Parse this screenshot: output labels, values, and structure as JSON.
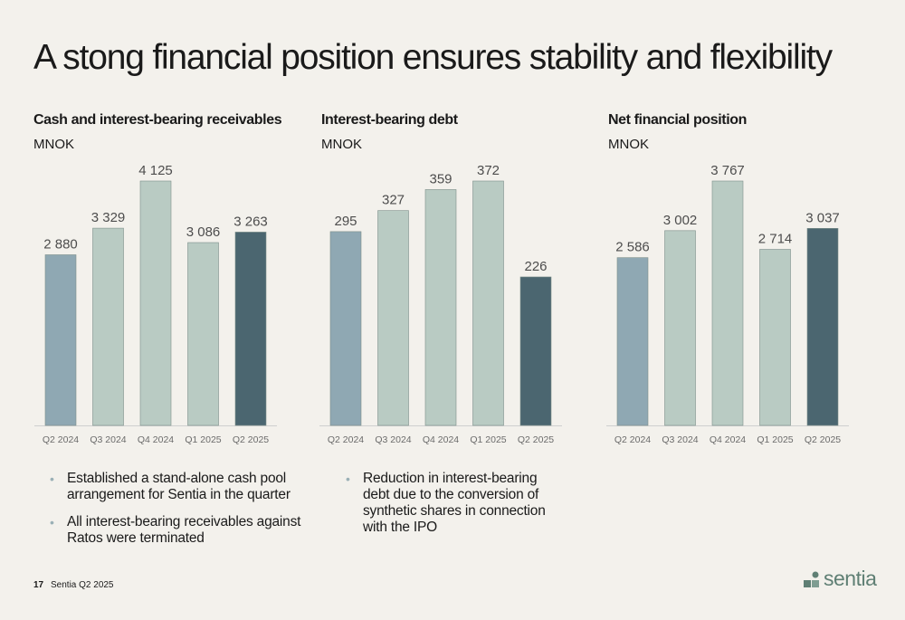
{
  "slide": {
    "title": "A stong financial position ensures stability and flexibility",
    "page_number": "17",
    "footer_text": "Sentia Q2 2025",
    "logo_text": "sentia"
  },
  "colors": {
    "bar_highlight_start": "#8fa8b3",
    "bar_default": "#b9cbc3",
    "bar_highlight_end": "#4b6670",
    "baseline": "#cfcfcf",
    "logo": "#5f7f74"
  },
  "bullets_left": [
    "Established a stand-alone cash pool arrangement for Sentia in the quarter",
    "All interest-bearing receivables against Ratos were terminated"
  ],
  "bullets_middle": [
    "Reduction in interest-bearing debt due to the conversion of synthetic shares in connection with the IPO"
  ],
  "chart_data": [
    {
      "type": "bar",
      "title": "Cash and interest-bearing receivables",
      "subtitle": "MNOK",
      "categories": [
        "Q2 2024",
        "Q3 2024",
        "Q4 2024",
        "Q1 2025",
        "Q2 2025"
      ],
      "values": [
        2880,
        3329,
        4125,
        3086,
        3263
      ],
      "labels": [
        "2 880",
        "3 329",
        "4 125",
        "3 086",
        "3 263"
      ],
      "ylim": [
        0,
        4125
      ],
      "grid": false
    },
    {
      "type": "bar",
      "title": "Interest-bearing debt",
      "subtitle": "MNOK",
      "categories": [
        "Q2 2024",
        "Q3 2024",
        "Q4 2024",
        "Q1 2025",
        "Q2 2025"
      ],
      "values": [
        295,
        327,
        359,
        372,
        226
      ],
      "labels": [
        "295",
        "327",
        "359",
        "372",
        "226"
      ],
      "ylim": [
        0,
        372
      ],
      "grid": false
    },
    {
      "type": "bar",
      "title": "Net financial position",
      "subtitle": "MNOK",
      "categories": [
        "Q2 2024",
        "Q3 2024",
        "Q4 2024",
        "Q1 2025",
        "Q2 2025"
      ],
      "values": [
        2586,
        3002,
        3767,
        2714,
        3037
      ],
      "labels": [
        "2 586",
        "3 002",
        "3 767",
        "2 714",
        "3 037"
      ],
      "ylim": [
        0,
        3767
      ],
      "grid": false
    }
  ]
}
